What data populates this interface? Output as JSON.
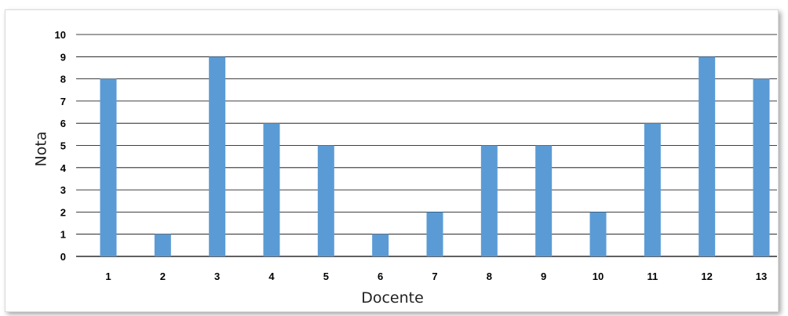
{
  "chart_data": {
    "type": "bar",
    "title": "",
    "xlabel": "Docente",
    "ylabel": "Nota",
    "categories": [
      "1",
      "2",
      "3",
      "4",
      "5",
      "6",
      "7",
      "8",
      "9",
      "10",
      "11",
      "12",
      "13"
    ],
    "values": [
      8,
      1,
      9,
      6,
      5,
      1,
      2,
      5,
      5,
      2,
      6,
      9,
      8
    ],
    "ylim": [
      0,
      10
    ],
    "yticks": [
      0,
      1,
      2,
      3,
      4,
      5,
      6,
      7,
      8,
      9,
      10
    ],
    "grid": true,
    "legend": "none",
    "bar_color": "#5b9bd5",
    "grid_color": "#000000"
  }
}
